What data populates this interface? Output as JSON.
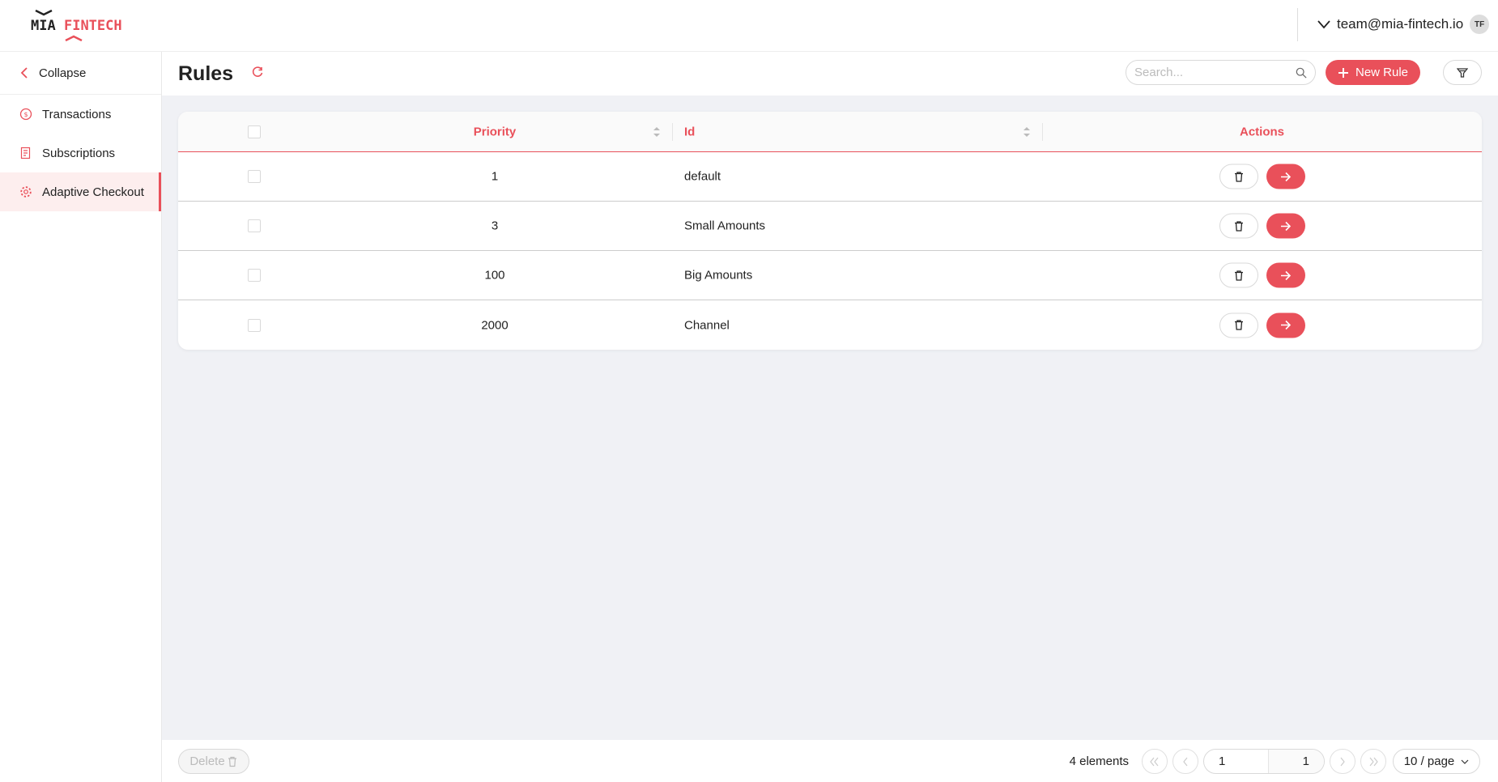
{
  "brand": {
    "logo_text_1": "MIA",
    "logo_text_2": "FINTECH",
    "accent": "#e9505a"
  },
  "user": {
    "email": "team@mia-fintech.io",
    "initials": "TF"
  },
  "sidebar": {
    "collapse": "Collapse",
    "items": [
      {
        "label": "Transactions",
        "icon": "dollar-circle-icon"
      },
      {
        "label": "Subscriptions",
        "icon": "receipt-icon"
      },
      {
        "label": "Adaptive Checkout",
        "icon": "gear-icon",
        "active": true
      }
    ]
  },
  "page": {
    "title": "Rules",
    "search_placeholder": "Search...",
    "search_value": "",
    "new_rule": "New Rule"
  },
  "table": {
    "columns": {
      "priority": "Priority",
      "id": "Id",
      "actions": "Actions"
    },
    "rows": [
      {
        "priority": "1",
        "id": "default"
      },
      {
        "priority": "3",
        "id": "Small Amounts"
      },
      {
        "priority": "100",
        "id": "Big Amounts"
      },
      {
        "priority": "2000",
        "id": "Channel"
      }
    ]
  },
  "footer": {
    "delete": "Delete",
    "count": "4 elements",
    "current_page": "1",
    "total_pages": "1",
    "page_size": "10 / page"
  }
}
